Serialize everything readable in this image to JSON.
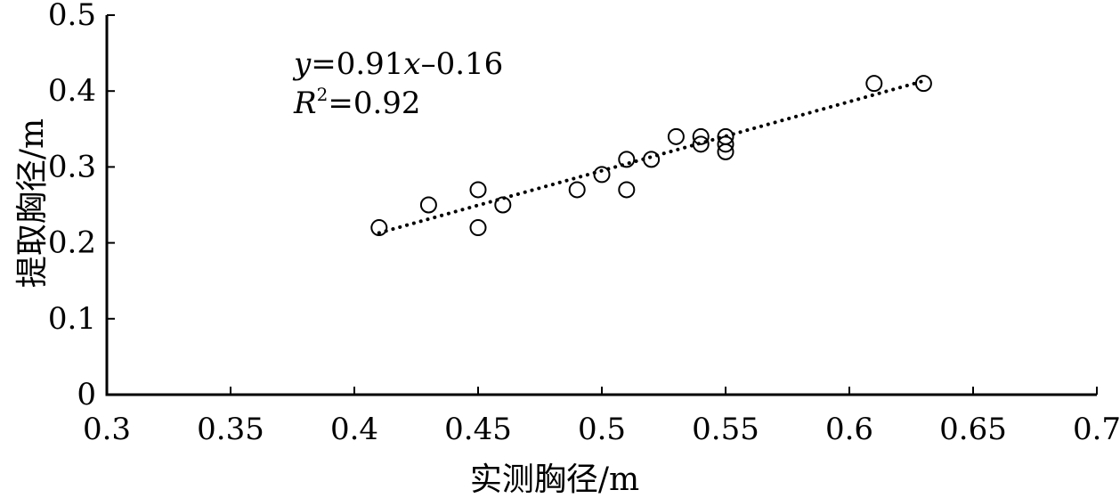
{
  "chart_data": {
    "type": "scatter",
    "title": "",
    "xlabel": "实测胸径/m",
    "ylabel": "提取胸径/m",
    "xlim": [
      0.3,
      0.7
    ],
    "ylim": [
      0,
      0.5
    ],
    "x_ticks": [
      "0.3",
      "0.35",
      "0.4",
      "0.45",
      "0.5",
      "0.55",
      "0.6",
      "0.65",
      "0.7"
    ],
    "y_ticks": [
      "0",
      "0.1",
      "0.2",
      "0.3",
      "0.4",
      "0.5"
    ],
    "grid": false,
    "legend": "none",
    "marker": "open-circle",
    "trendline": {
      "style": "dotted",
      "slope": 0.91,
      "intercept": -0.16,
      "x_range": [
        0.41,
        0.63
      ]
    },
    "annotation": {
      "equation": {
        "y": "y",
        "rest1": "=0.91",
        "x": "x",
        "rest2": "–0.16"
      },
      "r2": {
        "r": "R",
        "sup": "2",
        "rest": "=0.92"
      }
    },
    "points": [
      {
        "x": 0.41,
        "y": 0.22
      },
      {
        "x": 0.43,
        "y": 0.25
      },
      {
        "x": 0.45,
        "y": 0.27
      },
      {
        "x": 0.45,
        "y": 0.22
      },
      {
        "x": 0.46,
        "y": 0.25
      },
      {
        "x": 0.49,
        "y": 0.27
      },
      {
        "x": 0.5,
        "y": 0.29
      },
      {
        "x": 0.51,
        "y": 0.31
      },
      {
        "x": 0.51,
        "y": 0.27
      },
      {
        "x": 0.52,
        "y": 0.31
      },
      {
        "x": 0.53,
        "y": 0.34
      },
      {
        "x": 0.54,
        "y": 0.34
      },
      {
        "x": 0.54,
        "y": 0.33
      },
      {
        "x": 0.55,
        "y": 0.34
      },
      {
        "x": 0.55,
        "y": 0.33
      },
      {
        "x": 0.55,
        "y": 0.32
      },
      {
        "x": 0.61,
        "y": 0.41
      },
      {
        "x": 0.63,
        "y": 0.41
      }
    ],
    "colors": {
      "marker": "#000000",
      "axis": "#000000",
      "trendline": "#000000"
    }
  }
}
